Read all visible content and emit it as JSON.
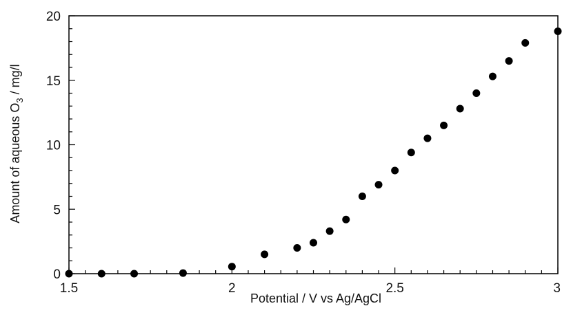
{
  "chart_data": {
    "type": "scatter",
    "title": "",
    "xlabel": "Potential / V vs Ag/AgCl",
    "ylabel": {
      "prefix": "Amount of aqueous O",
      "subscript": "3",
      "suffix": " / mg/l"
    },
    "xlim": [
      1.5,
      3.0
    ],
    "ylim": [
      0,
      20
    ],
    "xticks": [
      1.5,
      2,
      2.5,
      3
    ],
    "xtick_labels": [
      "1.5",
      "2",
      "2.5",
      "3"
    ],
    "yticks": [
      0,
      5,
      10,
      15,
      20
    ],
    "ytick_labels": [
      "0",
      "5",
      "10",
      "15",
      "20"
    ],
    "grid": false,
    "legend": "none",
    "marker_color": "#000000",
    "series": [
      {
        "x": [
          1.5,
          1.6,
          1.7,
          1.85,
          2.0,
          2.1,
          2.2,
          2.25,
          2.3,
          2.35,
          2.4,
          2.45,
          2.5,
          2.55,
          2.6,
          2.65,
          2.7,
          2.75,
          2.8,
          2.85,
          2.9,
          3.0
        ],
        "y": [
          0,
          0,
          0,
          0.05,
          0.55,
          1.5,
          2.0,
          2.4,
          3.3,
          4.2,
          6.0,
          6.9,
          8.0,
          9.4,
          10.5,
          11.5,
          12.8,
          14.0,
          15.3,
          16.5,
          17.9,
          18.8
        ]
      }
    ]
  }
}
